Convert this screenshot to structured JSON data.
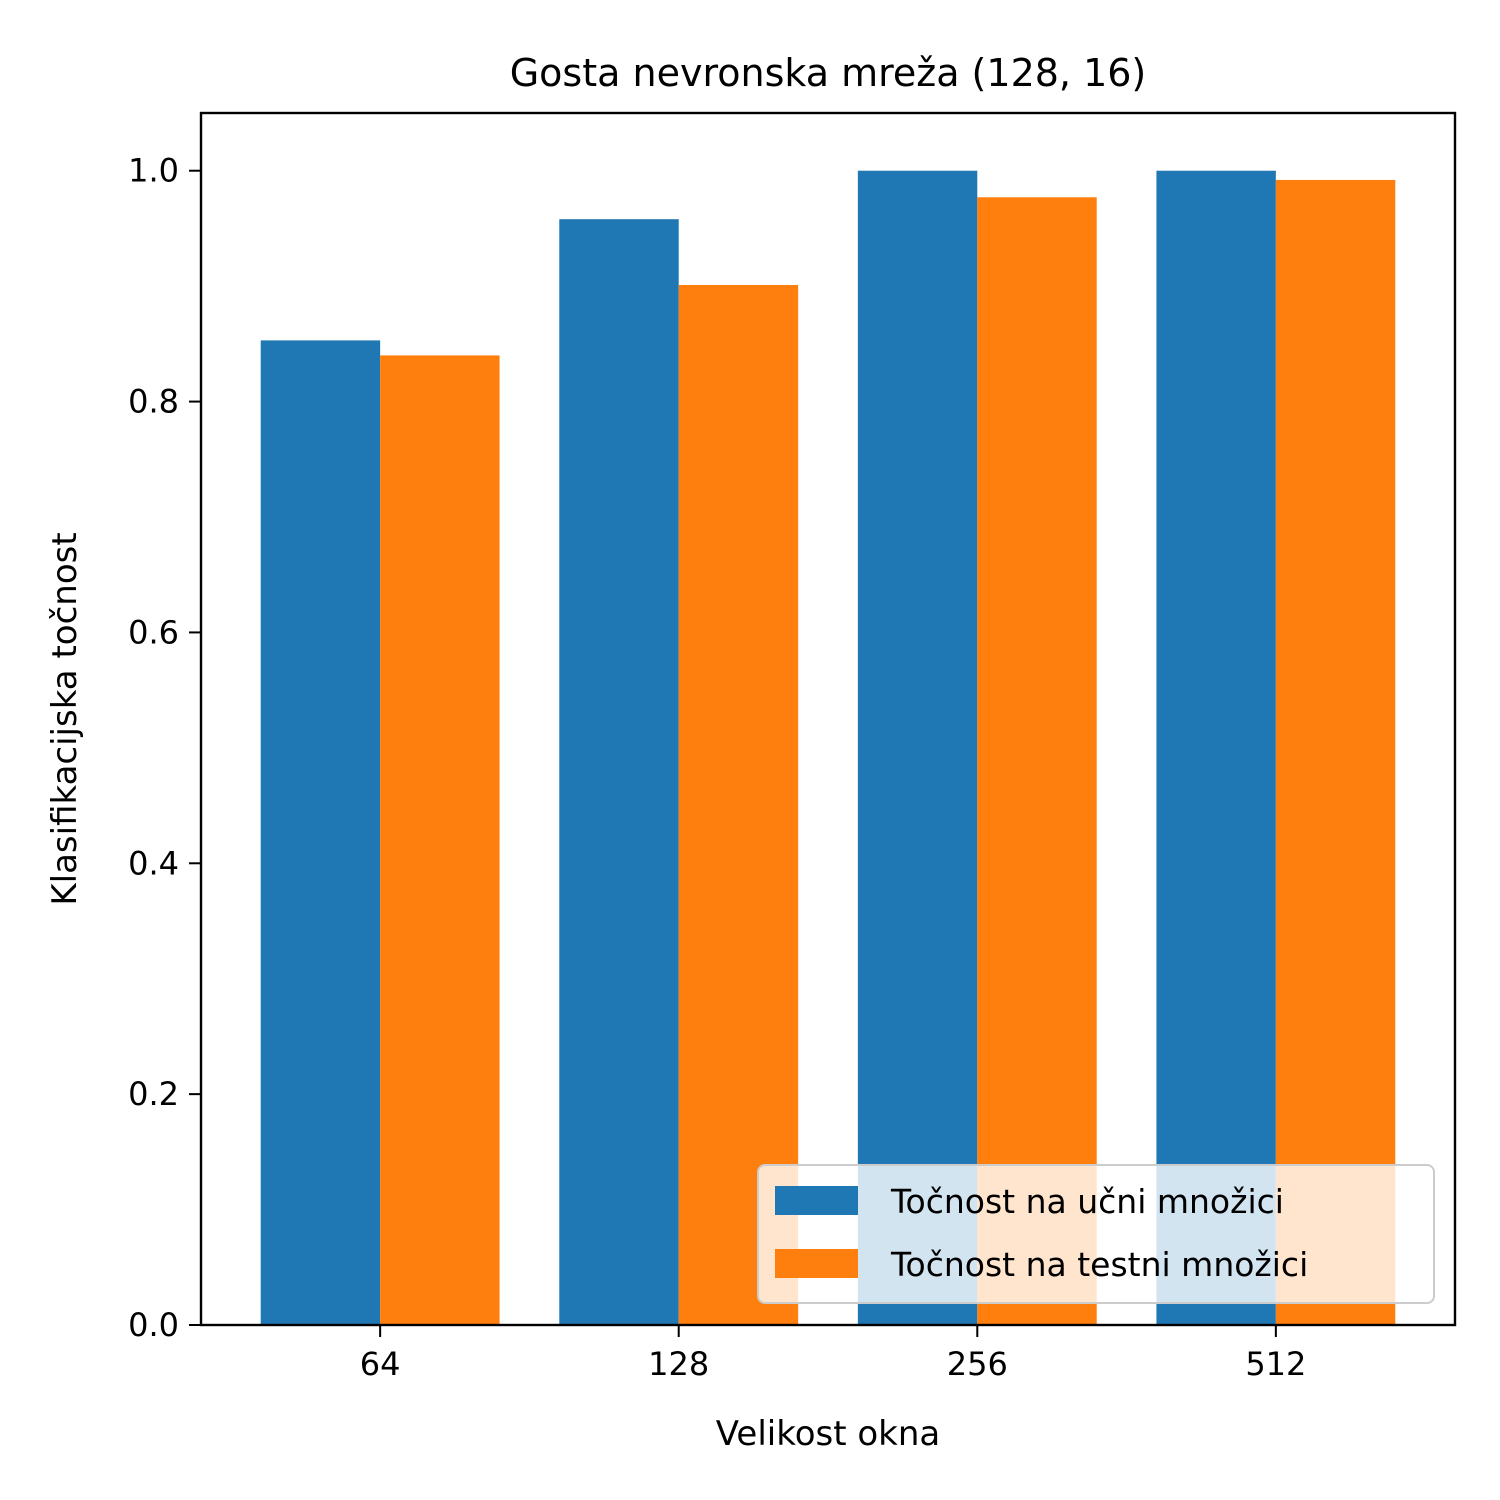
{
  "chart_data": {
    "type": "bar",
    "title": "Gosta nevronska mreža (128, 16)",
    "xlabel": "Velikost okna",
    "ylabel": "Klasifikacijska točnost",
    "categories": [
      "64",
      "128",
      "256",
      "512"
    ],
    "series": [
      {
        "name": "Točnost na učni množici",
        "color": "#1f77b4",
        "values": [
          0.853,
          0.958,
          1.0,
          1.0
        ]
      },
      {
        "name": "Točnost na testni množici",
        "color": "#ff7f0e",
        "values": [
          0.84,
          0.901,
          0.977,
          0.992
        ]
      }
    ],
    "ylim": [
      0,
      1.05
    ],
    "yticks": [
      "0.0",
      "0.2",
      "0.4",
      "0.6",
      "0.8",
      "1.0"
    ],
    "grid": false,
    "legend_position": "lower-right"
  }
}
